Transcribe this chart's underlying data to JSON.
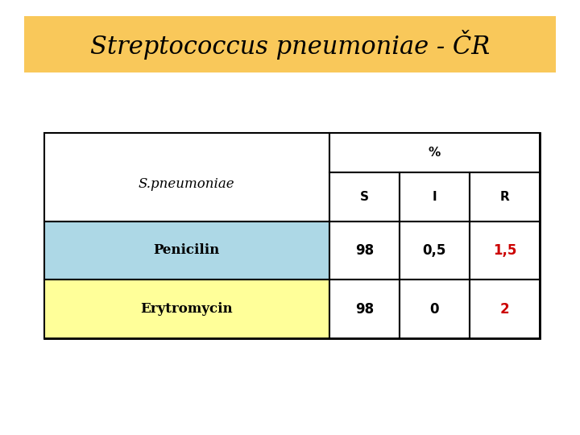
{
  "title": "Streptococcus pneumoniae - ČR",
  "title_bg_color": "#F9C85A",
  "title_text_color": "#000000",
  "title_fontsize": 22,
  "bg_color": "#FFFFFF",
  "table": {
    "header_label": "S.pneumoniae",
    "col_group_label": "%",
    "col_headers": [
      "S",
      "I",
      "R"
    ],
    "rows": [
      {
        "label": "Penicilin",
        "bg_color": "#ADD8E6",
        "values": [
          "98",
          "0,5",
          "1,5"
        ],
        "value_colors": [
          "#000000",
          "#000000",
          "#CC0000"
        ]
      },
      {
        "label": "Erytromycin",
        "bg_color": "#FFFF99",
        "values": [
          "98",
          "0",
          "2"
        ],
        "value_colors": [
          "#000000",
          "#000000",
          "#CC0000"
        ]
      }
    ]
  }
}
